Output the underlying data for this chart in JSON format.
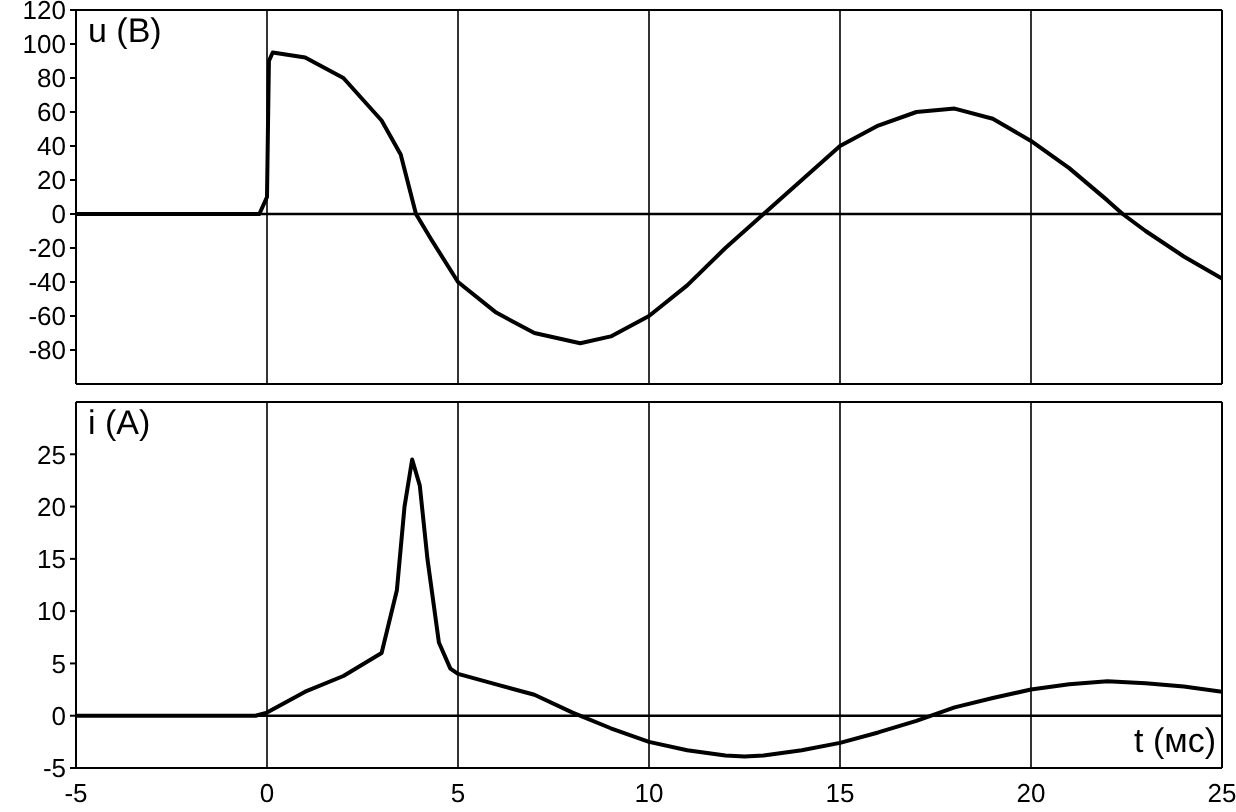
{
  "chart_data": [
    {
      "type": "line",
      "ylabel": "u (B)",
      "x": [
        -5,
        -4,
        -3,
        -2,
        -1,
        -0.2,
        0,
        0.05,
        0.15,
        1,
        2,
        3,
        3.5,
        3.9,
        4.3,
        5,
        6,
        7,
        8.2,
        9,
        10,
        11,
        12,
        13,
        14,
        15,
        16,
        17,
        18,
        19,
        20,
        21,
        22,
        22.4,
        23,
        24,
        25
      ],
      "series": [
        {
          "color": "#000000",
          "values": [
            0,
            0,
            0,
            0,
            0,
            0,
            10,
            90,
            95,
            92,
            80,
            55,
            35,
            0,
            -15,
            -40,
            -58,
            -70,
            -76,
            -72,
            -60,
            -42,
            -20,
            0,
            20,
            40,
            52,
            60,
            62,
            56,
            43,
            27,
            8,
            0,
            -10,
            -25,
            -38
          ]
        }
      ],
      "xlim": [
        -5,
        25
      ],
      "xticks": [
        -5,
        0,
        5,
        10,
        15,
        20,
        25
      ],
      "ylim": [
        -100,
        120
      ],
      "yticks": [
        -80,
        -60,
        -40,
        -20,
        0,
        20,
        40,
        60,
        80,
        100,
        120
      ],
      "grid": "x",
      "tick_labels": "y",
      "ref_lines": [
        {
          "axis": "y",
          "value": 0
        }
      ]
    },
    {
      "type": "line",
      "ylabel": "i (A)",
      "xlabel": "t (мс)",
      "x": [
        -5,
        -3,
        -1,
        -0.3,
        0,
        1,
        2,
        3,
        3.4,
        3.6,
        3.8,
        4,
        4.2,
        4.5,
        4.8,
        5,
        6,
        7,
        8,
        9,
        10,
        11,
        12,
        12.5,
        13,
        14,
        15,
        16,
        17,
        18,
        19,
        20,
        21,
        22,
        23,
        24,
        25
      ],
      "series": [
        {
          "color": "#000000",
          "values": [
            0,
            0,
            0,
            0,
            0.3,
            2.3,
            3.8,
            6,
            12,
            20,
            24.5,
            22,
            15,
            7,
            4.5,
            4,
            3,
            2,
            0.3,
            -1.2,
            -2.5,
            -3.3,
            -3.8,
            -3.9,
            -3.8,
            -3.3,
            -2.6,
            -1.6,
            -0.5,
            0.8,
            1.7,
            2.5,
            3,
            3.3,
            3.1,
            2.8,
            2.3
          ]
        }
      ],
      "xlim": [
        -5,
        25
      ],
      "xticks": [
        -5,
        0,
        5,
        10,
        15,
        20,
        25
      ],
      "ylim": [
        -5,
        30
      ],
      "yticks": [
        -5,
        0,
        5,
        10,
        15,
        20,
        25
      ],
      "grid": "x",
      "ref_lines": [
        {
          "axis": "y",
          "value": 0
        }
      ]
    }
  ]
}
